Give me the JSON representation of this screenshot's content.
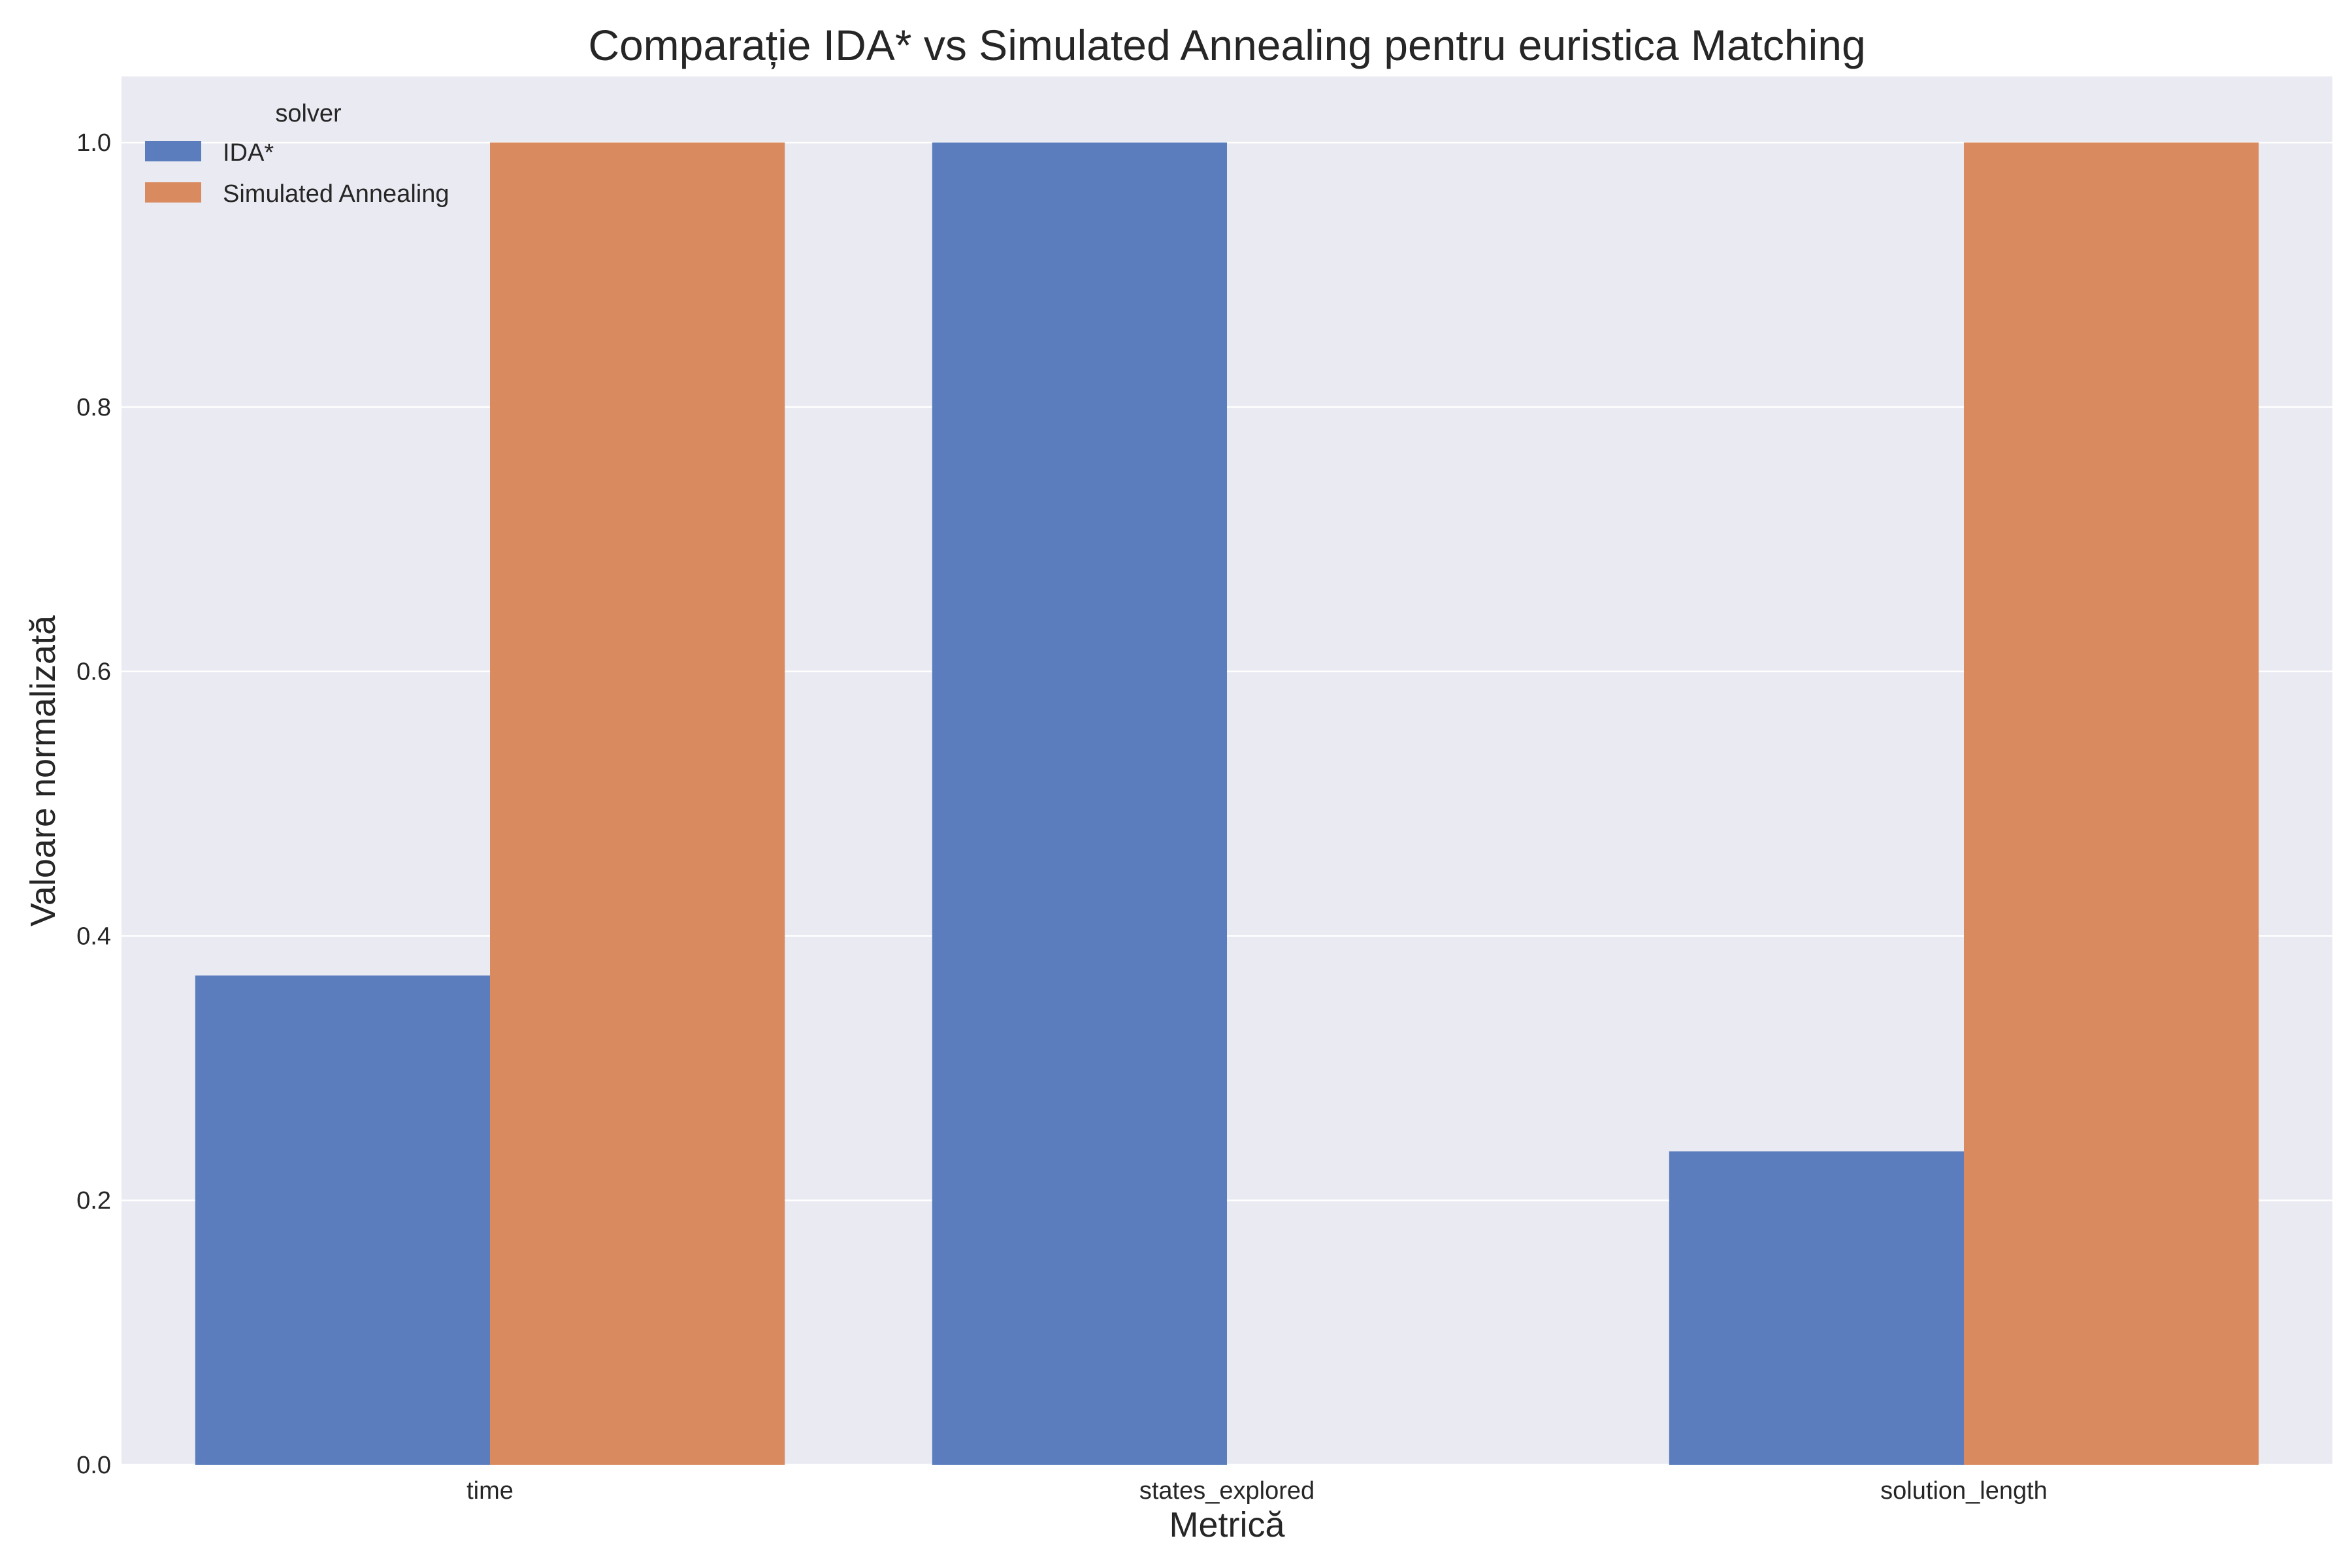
{
  "chart_data": {
    "type": "bar",
    "title": "Comparație IDA* vs Simulated Annealing pentru euristica Matching",
    "xlabel": "Metrică",
    "ylabel": "Valoare normalizată",
    "categories": [
      "time",
      "states_explored",
      "solution_length"
    ],
    "series": [
      {
        "name": "IDA*",
        "color": "#5b7dbe",
        "values": [
          0.37,
          1.0,
          0.237
        ]
      },
      {
        "name": "Simulated Annealing",
        "color": "#d98a5f",
        "values": [
          1.0,
          0.0,
          1.0
        ]
      }
    ],
    "ylim": [
      0,
      1.05
    ],
    "yticks": [
      "0.0",
      "0.2",
      "0.4",
      "0.6",
      "0.8",
      "1.0"
    ],
    "legend": {
      "title": "solver",
      "position": "top-left"
    },
    "grid": true,
    "background": "#eaeaf2",
    "grid_color": "#ffffff"
  }
}
